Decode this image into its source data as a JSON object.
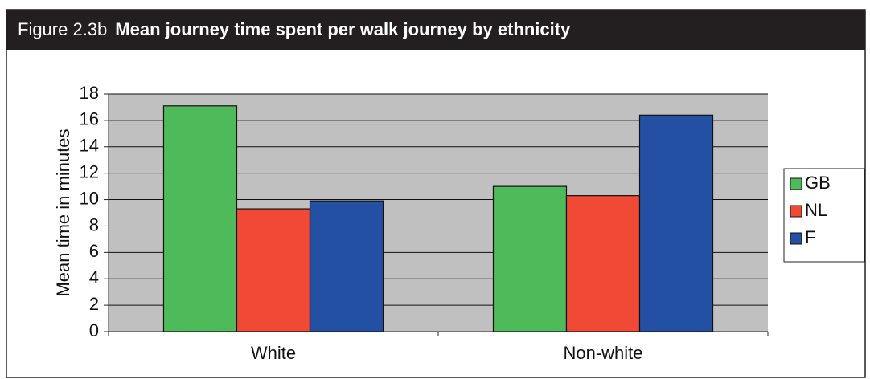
{
  "chart_data": {
    "type": "bar",
    "figure_label": "Figure 2.3b",
    "title": "Mean journey time spent per walk journey by ethnicity",
    "y_label": "Mean time in minutes",
    "categories": [
      "White",
      "Non-white"
    ],
    "series": [
      {
        "name": "GB",
        "color": "#4fba5a",
        "values": [
          17.1,
          11.0
        ]
      },
      {
        "name": "NL",
        "color": "#f04a37",
        "values": [
          9.3,
          10.3
        ]
      },
      {
        "name": "F",
        "color": "#2450a4",
        "values": [
          9.9,
          16.4
        ]
      }
    ],
    "ylim": [
      0,
      18
    ],
    "yticks": [
      0,
      2,
      4,
      6,
      8,
      10,
      12,
      14,
      16,
      18
    ],
    "grid": true,
    "legend": "right"
  }
}
